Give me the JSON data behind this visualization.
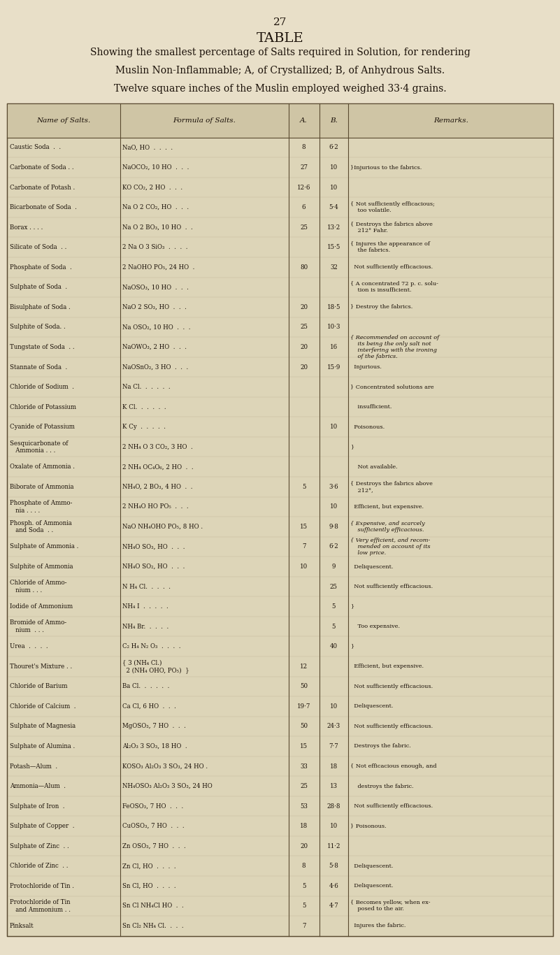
{
  "page_number": "27",
  "title": "TABLE",
  "subtitle_lines": [
    "Showing the smallest percentage of Salts required in Solution, for rendering",
    "Muslin Non-Inflammable; A, of Crystallized; B, of Anhydrous Salts.",
    "Twelve square inches of the Muslin employed weighed 33·4 grains."
  ],
  "col_headers": [
    "Name of Salts.",
    "Formula of Salts.",
    "A.",
    "B.",
    "Remarks."
  ],
  "bg_color": "#e8dfc8",
  "table_bg": "#ddd5b8",
  "text_color": "#1a1008",
  "rows": [
    {
      "name": "Caustic Soda  .  .",
      "formula": "NaO, HO  .  .  .  .",
      "A": "8",
      "B": "6·2",
      "remark": ""
    },
    {
      "name": "Carbonate of Soda . .",
      "formula": "NaOCO₂, 10 HO  .  .  .",
      "A": "27",
      "B": "10",
      "remark": "}Injurious to the fabrics."
    },
    {
      "name": "Carbonate of Potash .",
      "formula": "KO CO₂, 2 HO  .  .  .",
      "A": "12·6",
      "B": "10",
      "remark": ""
    },
    {
      "name": "Bicarbonate of Soda  .",
      "formula": "Na O 2 CO₂, HO  .  .  .",
      "A": "6",
      "B": "5·4",
      "remark": "{ Not sufficiently efficacious;\n    too volatile."
    },
    {
      "name": "Borax . . . .",
      "formula": "Na O 2 BO₃, 10 HO  .  .",
      "A": "25",
      "B": "13·2",
      "remark": "{ Destroys the fabrics above\n    212° Fahr."
    },
    {
      "name": "Silicate of Soda  . .",
      "formula": "2 Na O 3 SiO₃  .  .  .  .",
      "A": "",
      "B": "15·5",
      "remark": "{ Injures the appearance of\n    the fabrics."
    },
    {
      "name": "Phosphate of Soda  .",
      "formula": "2 NaOHO PO₅, 24 HO  .",
      "A": "80",
      "B": "32",
      "remark": "  Not sufficiently efficacious."
    },
    {
      "name": "Sulphate of Soda  .",
      "formula": "NaOSO₃, 10 HO  .  .  .",
      "A": "",
      "B": "",
      "remark": "{ A concentrated 72 p. c. solu-\n    tion is insufficient."
    },
    {
      "name": "Bisulphate of Soda .",
      "formula": "NaO 2 SO₃, HO  .  .  .",
      "A": "20",
      "B": "18·5",
      "remark": "} Destroy the fabrics."
    },
    {
      "name": "Sulphite of Soda. .",
      "formula": "Na OSO₂, 10 HO  .  .  .",
      "A": "25",
      "B": "10·3",
      "remark": ""
    },
    {
      "name": "Tungstate of Soda  . .",
      "formula": "NaOWO₃, 2 HO  .  .  .",
      "A": "20",
      "B": "16",
      "remark": "{ Recommended on account of\n    its being the only salt not\n    interfering with the ironing\n    of the fabrics."
    },
    {
      "name": "Stannate of Soda  .",
      "formula": "NaOSnO₂, 3 HO  .  .  .",
      "A": "20",
      "B": "15·9",
      "remark": "  Injurious."
    },
    {
      "name": "Chloride of Sodium  .",
      "formula": "Na Cl.  .  .  .  .  .",
      "A": "",
      "B": "",
      "remark": "} Concentrated solutions are"
    },
    {
      "name": "Chloride of Potassium",
      "formula": "K Cl.  .  .  .  .  .",
      "A": "",
      "B": "",
      "remark": "    insufficient."
    },
    {
      "name": "Cyanide of Potassium",
      "formula": "K Cy  .  .  .  .  .",
      "A": "",
      "B": "10",
      "remark": "  Poisonous."
    },
    {
      "name": "Sesquicarbonate of\n   Ammonia . . .",
      "formula": "2 NH₄ O 3 CO₂, 3 HO  .",
      "A": "",
      "B": "",
      "remark": "}"
    },
    {
      "name": "Oxalate of Ammonia .",
      "formula": "2 NH₄ OC₄O₆, 2 HO  .  .",
      "A": "",
      "B": "",
      "remark": "    Not available."
    },
    {
      "name": "Biborate of Ammonia",
      "formula": "NH₄O, 2 BO₃, 4 HO  .  .",
      "A": "5",
      "B": "3·6",
      "remark": "{ Destroys the fabrics above\n    212°,"
    },
    {
      "name": "Phosphate of Ammo-\n   nia . . . .",
      "formula": "2 NH₄O HO PO₅  .  .  .",
      "A": "",
      "B": "10",
      "remark": "  Efficient, but expensive."
    },
    {
      "name": "Phosph. of Ammonia\n   and Soda  . .",
      "formula": "NaO NH₄OHO PO₅, 8 HO .",
      "A": "15",
      "B": "9·8",
      "remark": "{ Expensive, and scarcely\n    sufficiently efficacious."
    },
    {
      "name": "Sulphate of Ammonia .",
      "formula": "NH₄O SO₃, HO  .  .  .",
      "A": "7",
      "B": "6·2",
      "remark": "{ Very efficient, and recom-\n    mended on account of its\n    low price."
    },
    {
      "name": "Sulphite of Ammonia",
      "formula": "NH₄O SO₂, HO  .  .  .",
      "A": "10",
      "B": "9",
      "remark": "  Deliquescent."
    },
    {
      "name": "Chloride of Ammo-\n   nium . . .",
      "formula": "N H₄ Cl.  .  .  .  .",
      "A": "",
      "B": "25",
      "remark": "  Not sufficiently efficacious."
    },
    {
      "name": "Iodide of Ammonium",
      "formula": "NH₄ I  .  .  .  .  .",
      "A": "",
      "B": "5",
      "remark": "}"
    },
    {
      "name": "Bromide of Ammo-\n   nium  . . .",
      "formula": "NH₄ Br.  .  .  .  .",
      "A": "",
      "B": "5",
      "remark": "    Too expensive."
    },
    {
      "name": "Urea  .  .  .  .",
      "formula": "C₂ H₄ N₂ O₃  .  .  .  .",
      "A": "",
      "B": "40",
      "remark": "}"
    },
    {
      "name": "Thouret's Mixture . .",
      "formula": "{ 3 (NH₄ Cl.)\n  2 (NH₄ OHO, PO₅)  }",
      "A": "12",
      "B": "",
      "remark": "  Efficient, but expensive."
    },
    {
      "name": "Chloride of Barium",
      "formula": "Ba Cl.  .  .  .  .  .",
      "A": "50",
      "B": "",
      "remark": "  Not sufficiently efficacious."
    },
    {
      "name": "Chloride of Calcium  .",
      "formula": "Ca Cl, 6 HO  .  .  .",
      "A": "19·7",
      "B": "10",
      "remark": "  Deliquescent."
    },
    {
      "name": "Sulphate of Magnesia",
      "formula": "MgOSO₃, 7 HO  .  .  .",
      "A": "50",
      "B": "24·3",
      "remark": "  Not sufficiently efficacious."
    },
    {
      "name": "Sulphate of Alumina .",
      "formula": "Al₂O₃ 3 SO₃, 18 HO  .",
      "A": "15",
      "B": "7·7",
      "remark": "  Destroys the fabric."
    },
    {
      "name": "Potash—Alum  .",
      "formula": "KOSO₃ Al₂O₃ 3 SO₃, 24 HO .",
      "A": "33",
      "B": "18",
      "remark": "{ Not efficacious enough, and"
    },
    {
      "name": "Ammonia—Alum  .",
      "formula": "NH₄OSO₃ Al₂O₃ 3 SO₃, 24 HO",
      "A": "25",
      "B": "13",
      "remark": "    destroys the fabric."
    },
    {
      "name": "Sulphate of Iron  .",
      "formula": "FeOSO₃, 7 HO  .  .  .",
      "A": "53",
      "B": "28·8",
      "remark": "  Not sufficiently efficacious."
    },
    {
      "name": "Sulphate of Copper  .",
      "formula": "CuOSO₃, 7 HO  .  .  .",
      "A": "18",
      "B": "10",
      "remark": "} Poisonous."
    },
    {
      "name": "Sulphate of Zinc  . .",
      "formula": "Zn OSO₃, 7 HO  .  .  .",
      "A": "20",
      "B": "11·2",
      "remark": ""
    },
    {
      "name": "Chloride of Zinc  . .",
      "formula": "Zn Cl, HO  .  .  .  .",
      "A": "8",
      "B": "5·8",
      "remark": "  Deliquescent."
    },
    {
      "name": "Protochloride of Tin .",
      "formula": "Sn Cl, HO  .  .  .  .",
      "A": "5",
      "B": "4·6",
      "remark": "  Deliquescent."
    },
    {
      "name": "Protochloride of Tin\n   and Ammonium . .",
      "formula": "Sn Cl NH₄Cl HO  .  .",
      "A": "5",
      "B": "4·7",
      "remark": "{ Becomes yellow, when ex-\n    posed to the air."
    },
    {
      "name": "Pinksalt",
      "formula": "Sn Cl₂ NH₄ Cl.  .  .  .",
      "A": "7",
      "B": "",
      "remark": "  Injures the fabric."
    }
  ]
}
